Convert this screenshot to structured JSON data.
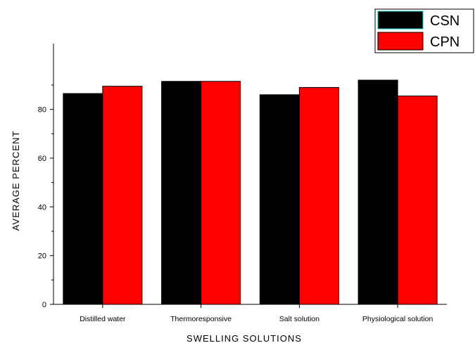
{
  "chart_data": {
    "type": "bar",
    "categories": [
      "Distilled water",
      "Thermoresponsive",
      "Salt solution",
      "Physiological solution"
    ],
    "series": [
      {
        "name": "CSN",
        "color": "#000000",
        "values": [
          86.5,
          91.5,
          86.0,
          92.0
        ]
      },
      {
        "name": "CPN",
        "color": "#ff0000",
        "values": [
          89.5,
          91.5,
          89.0,
          85.5
        ]
      }
    ],
    "xlabel": "SWELLING SOLUTIONS",
    "ylabel": "AVERAGE PERCENT",
    "ylim": [
      0,
      107
    ],
    "yticks": [
      0,
      20,
      40,
      60,
      80
    ],
    "grid": false,
    "legend_position": "top-right"
  }
}
